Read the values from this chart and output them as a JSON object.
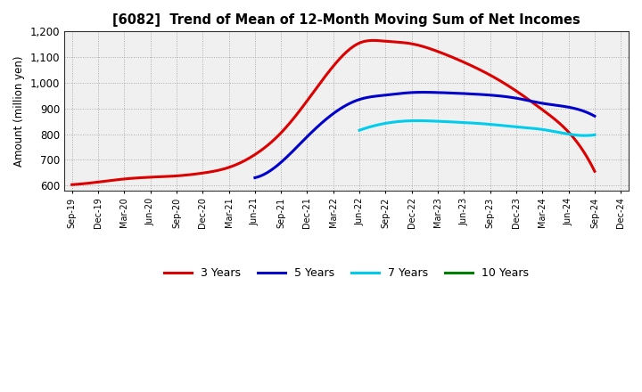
{
  "title": "[6082]  Trend of Mean of 12-Month Moving Sum of Net Incomes",
  "ylabel": "Amount (million yen)",
  "ylim": [
    580,
    1200
  ],
  "yticks": [
    600,
    700,
    800,
    900,
    1000,
    1100,
    1200
  ],
  "background_color": "#ffffff",
  "plot_bg_color": "#f0f0f0",
  "grid_color": "#aaaaaa",
  "x_labels": [
    "Sep-19",
    "Dec-19",
    "Mar-20",
    "Jun-20",
    "Sep-20",
    "Dec-20",
    "Mar-21",
    "Jun-21",
    "Sep-21",
    "Dec-21",
    "Mar-22",
    "Jun-22",
    "Sep-22",
    "Dec-22",
    "Mar-23",
    "Jun-23",
    "Sep-23",
    "Dec-23",
    "Mar-24",
    "Jun-24",
    "Sep-24",
    "Dec-24"
  ],
  "series": {
    "3 Years": {
      "color": "#dd0000",
      "data": [
        603,
        613,
        625,
        632,
        637,
        648,
        670,
        720,
        805,
        930,
        1065,
        1155,
        1162,
        1152,
        1122,
        1080,
        1030,
        968,
        895,
        808,
        655,
        null
      ]
    },
    "5 Years": {
      "color": "#0000cc",
      "data": [
        null,
        null,
        null,
        null,
        null,
        null,
        null,
        630,
        690,
        790,
        880,
        935,
        952,
        962,
        962,
        958,
        952,
        940,
        920,
        905,
        870,
        null
      ]
    },
    "7 Years": {
      "color": "#00ccee",
      "data": [
        null,
        null,
        null,
        null,
        null,
        null,
        null,
        null,
        null,
        null,
        null,
        815,
        842,
        852,
        850,
        845,
        838,
        828,
        818,
        800,
        797,
        null
      ]
    },
    "10 Years": {
      "color": "#008000",
      "data": [
        null,
        null,
        null,
        null,
        null,
        null,
        null,
        null,
        null,
        null,
        null,
        null,
        null,
        null,
        null,
        null,
        null,
        null,
        null,
        null,
        null,
        null
      ]
    }
  },
  "legend_order": [
    "3 Years",
    "5 Years",
    "7 Years",
    "10 Years"
  ],
  "line_width": 2.2
}
